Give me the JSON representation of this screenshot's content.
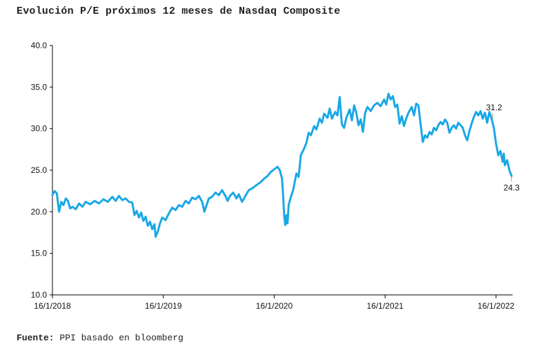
{
  "title": "Evolución P/E próximos 12 meses de Nasdaq Composite",
  "source": {
    "label": "Fuente:",
    "text": "PPI basado en bloomberg"
  },
  "colors": {
    "series": "#1aa7e6",
    "axis": "#000000",
    "text": "#111111"
  },
  "chart_data": {
    "type": "line",
    "title": "Evolución P/E próximos 12 meses de Nasdaq Composite",
    "xlabel": "",
    "ylabel": "",
    "ylim": [
      10.0,
      40.0
    ],
    "y_ticks": [
      "10.0",
      "15.0",
      "20.0",
      "25.0",
      "30.0",
      "35.0",
      "40.0"
    ],
    "x_range": [
      2018.0,
      2022.15
    ],
    "x_ticks": [
      {
        "label": "16/1/2018",
        "x": 2018.0
      },
      {
        "label": "16/1/2019",
        "x": 2019.0
      },
      {
        "label": "16/1/2020",
        "x": 2020.0
      },
      {
        "label": "16/1/2021",
        "x": 2021.0
      },
      {
        "label": "16/1/2022",
        "x": 2022.0
      }
    ],
    "grid": false,
    "series": [
      {
        "name": "P/E próximos 12 meses Nasdaq Composite",
        "points": [
          [
            2018.0,
            22.0
          ],
          [
            2018.02,
            22.5
          ],
          [
            2018.04,
            22.2
          ],
          [
            2018.06,
            20.0
          ],
          [
            2018.08,
            21.2
          ],
          [
            2018.1,
            20.8
          ],
          [
            2018.12,
            21.6
          ],
          [
            2018.14,
            21.3
          ],
          [
            2018.16,
            20.4
          ],
          [
            2018.18,
            20.6
          ],
          [
            2018.21,
            20.3
          ],
          [
            2018.24,
            21.0
          ],
          [
            2018.27,
            20.6
          ],
          [
            2018.3,
            21.2
          ],
          [
            2018.34,
            20.9
          ],
          [
            2018.38,
            21.3
          ],
          [
            2018.42,
            21.0
          ],
          [
            2018.46,
            21.5
          ],
          [
            2018.5,
            21.2
          ],
          [
            2018.54,
            21.8
          ],
          [
            2018.57,
            21.3
          ],
          [
            2018.6,
            21.9
          ],
          [
            2018.63,
            21.4
          ],
          [
            2018.66,
            21.6
          ],
          [
            2018.69,
            21.2
          ],
          [
            2018.72,
            21.1
          ],
          [
            2018.74,
            19.6
          ],
          [
            2018.76,
            20.1
          ],
          [
            2018.78,
            19.3
          ],
          [
            2018.8,
            19.9
          ],
          [
            2018.82,
            18.9
          ],
          [
            2018.84,
            19.4
          ],
          [
            2018.86,
            18.3
          ],
          [
            2018.88,
            18.8
          ],
          [
            2018.9,
            17.9
          ],
          [
            2018.92,
            18.5
          ],
          [
            2018.93,
            17.0
          ],
          [
            2018.95,
            17.6
          ],
          [
            2018.97,
            18.6
          ],
          [
            2018.99,
            19.3
          ],
          [
            2019.02,
            19.0
          ],
          [
            2019.05,
            19.8
          ],
          [
            2019.08,
            20.5
          ],
          [
            2019.11,
            20.2
          ],
          [
            2019.14,
            20.8
          ],
          [
            2019.17,
            20.6
          ],
          [
            2019.2,
            21.3
          ],
          [
            2019.23,
            21.0
          ],
          [
            2019.26,
            21.7
          ],
          [
            2019.29,
            21.5
          ],
          [
            2019.32,
            21.9
          ],
          [
            2019.35,
            21.2
          ],
          [
            2019.37,
            20.0
          ],
          [
            2019.39,
            20.8
          ],
          [
            2019.41,
            21.6
          ],
          [
            2019.44,
            21.8
          ],
          [
            2019.47,
            22.3
          ],
          [
            2019.5,
            22.0
          ],
          [
            2019.53,
            22.6
          ],
          [
            2019.56,
            21.9
          ],
          [
            2019.58,
            21.3
          ],
          [
            2019.6,
            21.9
          ],
          [
            2019.63,
            22.3
          ],
          [
            2019.66,
            21.6
          ],
          [
            2019.68,
            22.1
          ],
          [
            2019.71,
            21.2
          ],
          [
            2019.74,
            21.9
          ],
          [
            2019.77,
            22.6
          ],
          [
            2019.8,
            22.8
          ],
          [
            2019.84,
            23.2
          ],
          [
            2019.88,
            23.6
          ],
          [
            2019.91,
            24.0
          ],
          [
            2019.94,
            24.3
          ],
          [
            2019.97,
            24.8
          ],
          [
            2020.0,
            25.1
          ],
          [
            2020.03,
            25.4
          ],
          [
            2020.05,
            25.0
          ],
          [
            2020.07,
            24.0
          ],
          [
            2020.08,
            22.0
          ],
          [
            2020.09,
            19.5
          ],
          [
            2020.1,
            18.4
          ],
          [
            2020.11,
            19.6
          ],
          [
            2020.12,
            18.6
          ],
          [
            2020.13,
            20.8
          ],
          [
            2020.15,
            21.8
          ],
          [
            2020.17,
            22.6
          ],
          [
            2020.2,
            24.6
          ],
          [
            2020.22,
            24.2
          ],
          [
            2020.24,
            26.8
          ],
          [
            2020.27,
            27.6
          ],
          [
            2020.29,
            28.3
          ],
          [
            2020.31,
            29.5
          ],
          [
            2020.33,
            29.2
          ],
          [
            2020.36,
            30.3
          ],
          [
            2020.38,
            29.9
          ],
          [
            2020.41,
            31.2
          ],
          [
            2020.43,
            30.7
          ],
          [
            2020.45,
            31.8
          ],
          [
            2020.48,
            31.3
          ],
          [
            2020.5,
            32.4
          ],
          [
            2020.52,
            31.2
          ],
          [
            2020.55,
            32.0
          ],
          [
            2020.57,
            31.6
          ],
          [
            2020.59,
            33.8
          ],
          [
            2020.61,
            30.5
          ],
          [
            2020.63,
            30.1
          ],
          [
            2020.65,
            31.3
          ],
          [
            2020.68,
            32.3
          ],
          [
            2020.7,
            31.0
          ],
          [
            2020.72,
            32.8
          ],
          [
            2020.74,
            31.9
          ],
          [
            2020.76,
            30.4
          ],
          [
            2020.78,
            31.1
          ],
          [
            2020.8,
            29.6
          ],
          [
            2020.82,
            31.9
          ],
          [
            2020.84,
            32.6
          ],
          [
            2020.87,
            32.1
          ],
          [
            2020.9,
            32.8
          ],
          [
            2020.93,
            33.1
          ],
          [
            2020.96,
            32.7
          ],
          [
            2020.99,
            33.5
          ],
          [
            2021.01,
            32.9
          ],
          [
            2021.03,
            34.2
          ],
          [
            2021.05,
            33.5
          ],
          [
            2021.07,
            33.9
          ],
          [
            2021.09,
            32.6
          ],
          [
            2021.11,
            32.9
          ],
          [
            2021.13,
            30.6
          ],
          [
            2021.15,
            31.5
          ],
          [
            2021.17,
            30.3
          ],
          [
            2021.19,
            31.2
          ],
          [
            2021.21,
            31.9
          ],
          [
            2021.24,
            32.6
          ],
          [
            2021.26,
            31.6
          ],
          [
            2021.28,
            33.0
          ],
          [
            2021.3,
            32.8
          ],
          [
            2021.32,
            30.5
          ],
          [
            2021.34,
            28.4
          ],
          [
            2021.36,
            29.2
          ],
          [
            2021.38,
            28.9
          ],
          [
            2021.4,
            29.6
          ],
          [
            2021.42,
            29.3
          ],
          [
            2021.44,
            30.1
          ],
          [
            2021.46,
            29.8
          ],
          [
            2021.48,
            30.4
          ],
          [
            2021.5,
            30.8
          ],
          [
            2021.52,
            30.5
          ],
          [
            2021.54,
            31.1
          ],
          [
            2021.56,
            30.7
          ],
          [
            2021.58,
            29.5
          ],
          [
            2021.6,
            30.1
          ],
          [
            2021.62,
            30.4
          ],
          [
            2021.64,
            30.0
          ],
          [
            2021.66,
            30.7
          ],
          [
            2021.68,
            30.4
          ],
          [
            2021.7,
            30.1
          ],
          [
            2021.72,
            29.2
          ],
          [
            2021.74,
            28.6
          ],
          [
            2021.76,
            29.7
          ],
          [
            2021.78,
            30.6
          ],
          [
            2021.8,
            31.4
          ],
          [
            2021.82,
            32.0
          ],
          [
            2021.84,
            31.6
          ],
          [
            2021.86,
            32.1
          ],
          [
            2021.88,
            31.2
          ],
          [
            2021.9,
            31.9
          ],
          [
            2021.92,
            30.7
          ],
          [
            2021.94,
            32.0
          ],
          [
            2021.96,
            31.2
          ],
          [
            2021.98,
            30.1
          ],
          [
            2022.0,
            28.2
          ],
          [
            2022.02,
            26.8
          ],
          [
            2022.04,
            27.3
          ],
          [
            2022.06,
            26.0
          ],
          [
            2022.07,
            27.0
          ],
          [
            2022.08,
            25.6
          ],
          [
            2022.1,
            26.2
          ],
          [
            2022.12,
            25.0
          ],
          [
            2022.14,
            24.3
          ]
        ]
      }
    ],
    "annotations": [
      {
        "text": "31.2",
        "x": 2021.97,
        "y": 31.2
      },
      {
        "text": "24.3",
        "x": 2022.14,
        "y": 24.3
      }
    ]
  }
}
